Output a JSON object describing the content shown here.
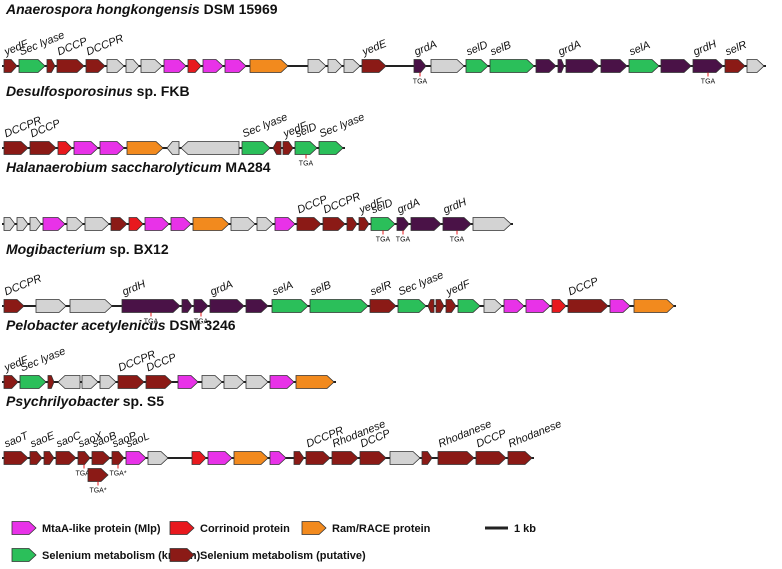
{
  "colors": {
    "grey": "#d3d3d3",
    "magenta": "#e832e8",
    "red": "#e8191e",
    "orange": "#f28a1e",
    "green": "#2bbf5a",
    "darkred": "#8b1a16",
    "purple": "#4a1247",
    "outline": "#333333"
  },
  "panels": [
    {
      "title_italic": "Anaerospora hongkongensis",
      "title_plain": " DSM 15969",
      "genes": [
        {
          "w": 13,
          "c": "darkred",
          "d": "r"
        },
        {
          "w": 26,
          "c": "green",
          "d": "r"
        },
        {
          "w": 8,
          "c": "darkred",
          "d": "r"
        },
        {
          "w": 27,
          "c": "darkred",
          "d": "r"
        },
        {
          "w": 19,
          "c": "darkred",
          "d": "r"
        },
        {
          "w": 17,
          "c": "grey",
          "d": "r"
        },
        {
          "w": 13,
          "c": "grey",
          "d": "r"
        },
        {
          "w": 21,
          "c": "grey",
          "d": "r"
        },
        {
          "w": 22,
          "c": "magenta",
          "d": "r"
        },
        {
          "w": 13,
          "c": "red",
          "d": "r"
        },
        {
          "w": 20,
          "c": "magenta",
          "d": "r"
        },
        {
          "w": 21,
          "c": "magenta",
          "d": "r"
        },
        {
          "w": 38,
          "c": "orange",
          "d": "r",
          "gap": 4
        },
        {
          "w": 18,
          "c": "grey",
          "d": "r",
          "gap": 20
        },
        {
          "w": 14,
          "c": "grey",
          "d": "r"
        },
        {
          "w": 16,
          "c": "grey",
          "d": "r"
        },
        {
          "w": 24,
          "c": "darkred",
          "d": "r"
        },
        {
          "w": 12,
          "c": "purple",
          "d": "r",
          "gap": 28,
          "tga": true
        },
        {
          "w": 33,
          "c": "grey",
          "d": "r",
          "gap": 5
        },
        {
          "w": 22,
          "c": "green",
          "d": "r"
        },
        {
          "w": 44,
          "c": "green",
          "d": "r"
        },
        {
          "w": 20,
          "c": "purple",
          "d": "r"
        },
        {
          "w": 6,
          "c": "purple",
          "d": "r"
        },
        {
          "w": 33,
          "c": "purple",
          "d": "r"
        },
        {
          "w": 26,
          "c": "purple",
          "d": "r"
        },
        {
          "w": 30,
          "c": "green",
          "d": "r"
        },
        {
          "w": 30,
          "c": "purple",
          "d": "r"
        },
        {
          "w": 30,
          "c": "purple",
          "d": "r",
          "tga": true
        },
        {
          "w": 20,
          "c": "darkred",
          "d": "r"
        },
        {
          "w": 17,
          "c": "grey",
          "d": "r"
        }
      ],
      "labels": [
        {
          "text": "yedF",
          "gene": 0
        },
        {
          "text": "Sec lyase",
          "gene": 1
        },
        {
          "text": "DCCP",
          "gene": 3
        },
        {
          "text": "DCCPR",
          "gene": 4
        },
        {
          "text": "yedE",
          "gene": 16
        },
        {
          "text": "grdA",
          "gene": 17
        },
        {
          "text": "selD",
          "gene": 19
        },
        {
          "text": "selB",
          "gene": 20
        },
        {
          "text": "grdA",
          "gene": 22
        },
        {
          "text": "selA",
          "gene": 25
        },
        {
          "text": "grdH",
          "gene": 27
        },
        {
          "text": "selR",
          "gene": 28
        }
      ]
    },
    {
      "title_italic": "Desulfosporosinus",
      "title_plain": " sp. FKB",
      "genes": [
        {
          "w": 24,
          "c": "darkred",
          "d": "r"
        },
        {
          "w": 26,
          "c": "darkred",
          "d": "r"
        },
        {
          "w": 14,
          "c": "red",
          "d": "r"
        },
        {
          "w": 24,
          "c": "magenta",
          "d": "r"
        },
        {
          "w": 24,
          "c": "magenta",
          "d": "r"
        },
        {
          "w": 36,
          "c": "orange",
          "d": "r",
          "gap": 3
        },
        {
          "w": 12,
          "c": "grey",
          "d": "l",
          "gap": 4
        },
        {
          "w": 58,
          "c": "grey",
          "d": "l"
        },
        {
          "w": 28,
          "c": "green",
          "d": "r",
          "gap": 3
        },
        {
          "w": 8,
          "c": "darkred",
          "d": "l",
          "gap": 3
        },
        {
          "w": 10,
          "c": "darkred",
          "d": "r"
        },
        {
          "w": 22,
          "c": "green",
          "d": "r",
          "tga": true
        },
        {
          "w": 24,
          "c": "green",
          "d": "r"
        }
      ],
      "labels": [
        {
          "text": "DCCPR",
          "gene": 0
        },
        {
          "text": "DCCP",
          "gene": 1
        },
        {
          "text": "Sec lyase",
          "gene": 8
        },
        {
          "text": "yedF",
          "gene": 10
        },
        {
          "text": "selD",
          "gene": 11
        },
        {
          "text": "Sec lyase",
          "gene": 12
        }
      ]
    },
    {
      "title_italic": "Halanaerobium saccharolyticum",
      "title_plain": " MA284",
      "genes": [
        {
          "w": 11,
          "c": "grey",
          "d": "r"
        },
        {
          "w": 11,
          "c": "grey",
          "d": "r"
        },
        {
          "w": 11,
          "c": "grey",
          "d": "r"
        },
        {
          "w": 22,
          "c": "magenta",
          "d": "r"
        },
        {
          "w": 16,
          "c": "grey",
          "d": "r"
        },
        {
          "w": 24,
          "c": "grey",
          "d": "r"
        },
        {
          "w": 16,
          "c": "darkred",
          "d": "r"
        },
        {
          "w": 14,
          "c": "red",
          "d": "r"
        },
        {
          "w": 24,
          "c": "magenta",
          "d": "r"
        },
        {
          "w": 20,
          "c": "magenta",
          "d": "r"
        },
        {
          "w": 36,
          "c": "orange",
          "d": "r"
        },
        {
          "w": 24,
          "c": "grey",
          "d": "r"
        },
        {
          "w": 16,
          "c": "grey",
          "d": "r"
        },
        {
          "w": 20,
          "c": "magenta",
          "d": "r"
        },
        {
          "w": 24,
          "c": "darkred",
          "d": "r"
        },
        {
          "w": 22,
          "c": "darkred",
          "d": "r"
        },
        {
          "w": 10,
          "c": "darkred",
          "d": "r"
        },
        {
          "w": 10,
          "c": "darkred",
          "d": "r"
        },
        {
          "w": 24,
          "c": "green",
          "d": "r",
          "tga": true
        },
        {
          "w": 12,
          "c": "purple",
          "d": "r",
          "tga": true
        },
        {
          "w": 30,
          "c": "purple",
          "d": "r"
        },
        {
          "w": 28,
          "c": "purple",
          "d": "r",
          "tga": true
        },
        {
          "w": 38,
          "c": "grey",
          "d": "r"
        }
      ],
      "labels": [
        {
          "text": "DCCP",
          "gene": 14
        },
        {
          "text": "DCCPR",
          "gene": 15
        },
        {
          "text": "yedF",
          "gene": 17
        },
        {
          "text": "selD",
          "gene": 18
        },
        {
          "text": "grdA",
          "gene": 19
        },
        {
          "text": "grdH",
          "gene": 21
        }
      ]
    },
    {
      "title_italic": "Mogibacterium",
      "title_plain": " sp. BX12",
      "genes": [
        {
          "w": 20,
          "c": "darkred",
          "d": "r"
        },
        {
          "w": 30,
          "c": "grey",
          "d": "r",
          "gap": 12
        },
        {
          "w": 42,
          "c": "grey",
          "d": "r",
          "gap": 4
        },
        {
          "w": 58,
          "c": "purple",
          "d": "r",
          "gap": 10,
          "tga": true
        },
        {
          "w": 10,
          "c": "purple",
          "d": "r"
        },
        {
          "w": 14,
          "c": "purple",
          "d": "r",
          "tga": true
        },
        {
          "w": 34,
          "c": "purple",
          "d": "r"
        },
        {
          "w": 22,
          "c": "purple",
          "d": "r"
        },
        {
          "w": 36,
          "c": "green",
          "d": "r",
          "gap": 4
        },
        {
          "w": 58,
          "c": "green",
          "d": "r"
        },
        {
          "w": 26,
          "c": "darkred",
          "d": "r"
        },
        {
          "w": 28,
          "c": "green",
          "d": "r"
        },
        {
          "w": 6,
          "c": "darkred",
          "d": "l"
        },
        {
          "w": 8,
          "c": "darkred",
          "d": "r"
        },
        {
          "w": 10,
          "c": "darkred",
          "d": "r"
        },
        {
          "w": 22,
          "c": "green",
          "d": "r"
        },
        {
          "w": 18,
          "c": "grey",
          "d": "r",
          "gap": 4
        },
        {
          "w": 20,
          "c": "magenta",
          "d": "r"
        },
        {
          "w": 24,
          "c": "magenta",
          "d": "r"
        },
        {
          "w": 14,
          "c": "red",
          "d": "r"
        },
        {
          "w": 40,
          "c": "darkred",
          "d": "r"
        },
        {
          "w": 20,
          "c": "magenta",
          "d": "r"
        },
        {
          "w": 40,
          "c": "orange",
          "d": "r",
          "gap": 4
        }
      ],
      "labels": [
        {
          "text": "DCCPR",
          "gene": 0
        },
        {
          "text": "grdH",
          "gene": 3
        },
        {
          "text": "grdA",
          "gene": 6
        },
        {
          "text": "selA",
          "gene": 8
        },
        {
          "text": "selB",
          "gene": 9
        },
        {
          "text": "selR",
          "gene": 10
        },
        {
          "text": "Sec lyase",
          "gene": 11
        },
        {
          "text": "yedF",
          "gene": 14
        },
        {
          "text": "DCCP",
          "gene": 20
        }
      ]
    },
    {
      "title_italic": "Pelobacter acetylenicus",
      "title_plain": " DSM 3246",
      "genes": [
        {
          "w": 14,
          "c": "darkred",
          "d": "r"
        },
        {
          "w": 26,
          "c": "green",
          "d": "r"
        },
        {
          "w": 6,
          "c": "darkred",
          "d": "r"
        },
        {
          "w": 22,
          "c": "grey",
          "d": "l",
          "gap": 4
        },
        {
          "w": 16,
          "c": "grey",
          "d": "r"
        },
        {
          "w": 16,
          "c": "grey",
          "d": "r"
        },
        {
          "w": 26,
          "c": "darkred",
          "d": "r"
        },
        {
          "w": 26,
          "c": "darkred",
          "d": "r"
        },
        {
          "w": 20,
          "c": "magenta",
          "d": "r",
          "gap": 6
        },
        {
          "w": 20,
          "c": "grey",
          "d": "r",
          "gap": 4
        },
        {
          "w": 20,
          "c": "grey",
          "d": "r"
        },
        {
          "w": 22,
          "c": "grey",
          "d": "r"
        },
        {
          "w": 24,
          "c": "magenta",
          "d": "r"
        },
        {
          "w": 38,
          "c": "orange",
          "d": "r"
        }
      ],
      "labels": [
        {
          "text": "yedF",
          "gene": 0
        },
        {
          "text": "Sec lyase",
          "gene": 1
        },
        {
          "text": "DCCPR",
          "gene": 6
        },
        {
          "text": "DCCP",
          "gene": 7
        }
      ]
    },
    {
      "title_italic": "Psychrilyobacter",
      "title_plain": " sp. S5",
      "genes": [
        {
          "w": 24,
          "c": "darkred",
          "d": "r"
        },
        {
          "w": 12,
          "c": "darkred",
          "d": "r"
        },
        {
          "w": 10,
          "c": "darkred",
          "d": "r"
        },
        {
          "w": 20,
          "c": "darkred",
          "d": "r"
        },
        {
          "w": 12,
          "c": "darkred",
          "d": "r",
          "tga": true,
          "tgaLabel": "TGA*"
        },
        {
          "w": 18,
          "c": "darkred",
          "d": "r"
        },
        {
          "w": 12,
          "c": "darkred",
          "d": "r",
          "tga": true,
          "tgaLabel": "TGA*"
        },
        {
          "w": 20,
          "c": "magenta",
          "d": "r"
        },
        {
          "w": 20,
          "c": "grey",
          "d": "r"
        },
        {
          "w": 14,
          "c": "red",
          "d": "r",
          "gap": 24
        },
        {
          "w": 24,
          "c": "magenta",
          "d": "r"
        },
        {
          "w": 34,
          "c": "orange",
          "d": "r"
        },
        {
          "w": 16,
          "c": "magenta",
          "d": "r"
        },
        {
          "w": 10,
          "c": "darkred",
          "d": "r",
          "gap": 8
        },
        {
          "w": 24,
          "c": "darkred",
          "d": "r"
        },
        {
          "w": 26,
          "c": "darkred",
          "d": "r"
        },
        {
          "w": 26,
          "c": "darkred",
          "d": "r"
        },
        {
          "w": 30,
          "c": "grey",
          "d": "r",
          "gap": 4
        },
        {
          "w": 10,
          "c": "darkred",
          "d": "r"
        },
        {
          "w": 36,
          "c": "darkred",
          "d": "r",
          "gap": 6
        },
        {
          "w": 30,
          "c": "darkred",
          "d": "r"
        },
        {
          "w": 24,
          "c": "darkred",
          "d": "r"
        }
      ],
      "subgenes": [
        {
          "after": 4,
          "w": 20,
          "c": "darkred",
          "d": "r",
          "tga": true,
          "tgaLabel": "TGA*"
        }
      ],
      "labels": [
        {
          "text": "saoT",
          "gene": 0
        },
        {
          "text": "saoE",
          "gene": 1
        },
        {
          "text": "saoC",
          "gene": 3
        },
        {
          "text": "saoX",
          "gene": 4
        },
        {
          "text": "saoB",
          "gene": 5
        },
        {
          "text": "saoP",
          "gene": 6
        },
        {
          "text": "saoL",
          "gene": 7
        },
        {
          "text": "DCCPR",
          "gene": 14
        },
        {
          "text": "Rhodanese",
          "gene": 15
        },
        {
          "text": "DCCP",
          "gene": 16
        },
        {
          "text": "Rhodanese",
          "gene": 19
        },
        {
          "text": "DCCP",
          "gene": 20
        },
        {
          "text": "Rhodanese",
          "gene": 21
        }
      ]
    }
  ],
  "tga_text": "TGA",
  "legend": [
    {
      "color": "magenta",
      "label": "MtaA-like protein (Mlp)"
    },
    {
      "color": "red",
      "label": "Corrinoid protein"
    },
    {
      "color": "orange",
      "label": "Ram/RACE protein"
    },
    {
      "color": "green",
      "label": "Selenium metabolism (known)"
    },
    {
      "color": "darkred",
      "label": "Selenium metabolism (putative)"
    }
  ],
  "scale_label": "1 kb"
}
